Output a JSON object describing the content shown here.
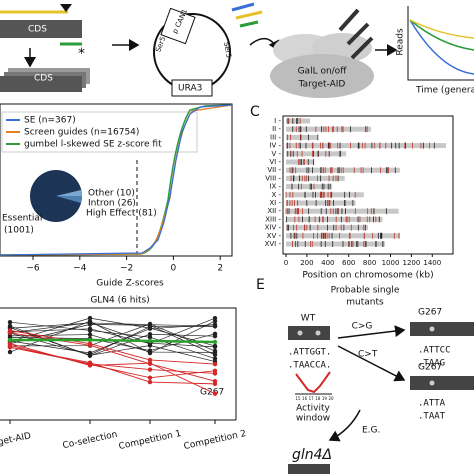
{
  "panel_a": {
    "cds_top": "CDS",
    "asterisk": "*",
    "cds_bottom": "CDS",
    "plasmid_left": "Ser5",
    "plasmid_top": "p CAN1",
    "plasmid_right": "Ser5",
    "plasmid_bottom": "URA3",
    "cell_line1": "GalL on/off",
    "cell_line2": "Target-AID",
    "reads_axis": "Reads",
    "time_axis": "Time (generat"
  },
  "panel_b": {
    "legend": [
      "SE (n=367)",
      "Screen guides (n=16754)",
      "gumbel l-skewed SE z-score fit"
    ],
    "pie_essential": "Essential",
    "pie_essential_count": "(1001)",
    "pie_other": "Other (10)",
    "pie_intron": "Intron (26)",
    "pie_high": "High Effect (81)",
    "xticks": [
      "−6",
      "−4",
      "−2",
      "0",
      "2"
    ],
    "xlabel": "Guide Z-scores"
  },
  "panel_c": {
    "letter": "C",
    "chromosomes": [
      "I -",
      "II -",
      "III -",
      "IV -",
      "V -",
      "VI -",
      "VII -",
      "VIII -",
      "IX -",
      "X -",
      "XI -",
      "XII -",
      "XIII -",
      "XIV -",
      "XV -",
      "XVI -"
    ],
    "xticks": [
      "0",
      "200",
      "400",
      "600",
      "800",
      "1000",
      "1200",
      "1400"
    ],
    "xlabel": "Position on chromosome (kb)"
  },
  "panel_d": {
    "title": "GLN4 (6 hits)",
    "label": "G267",
    "xticks": [
      "arget-AID",
      "Co-selection",
      "Competition 1",
      "Competition 2"
    ]
  },
  "panel_e": {
    "letter": "E",
    "title1": "Probable single",
    "title2": "mutants",
    "wt": "WT",
    "wt_seq1": ".ATTGGT.",
    "wt_seq2": ".TAACCA.",
    "window_ticks": [
      "15",
      "16",
      "17",
      "18",
      "19",
      "20"
    ],
    "window1": "Activity",
    "window2": "window",
    "cg": "C>G",
    "ct": "C>T",
    "mut1": "G267",
    "mut1_seq1": ".ATTCC",
    "mut1_seq2": ".TAAG",
    "mut2": "G267",
    "mut2_seq1": ".ATTA",
    "mut2_seq2": ".TAAT",
    "eg": "E.G.",
    "ko": "gln4Δ"
  }
}
